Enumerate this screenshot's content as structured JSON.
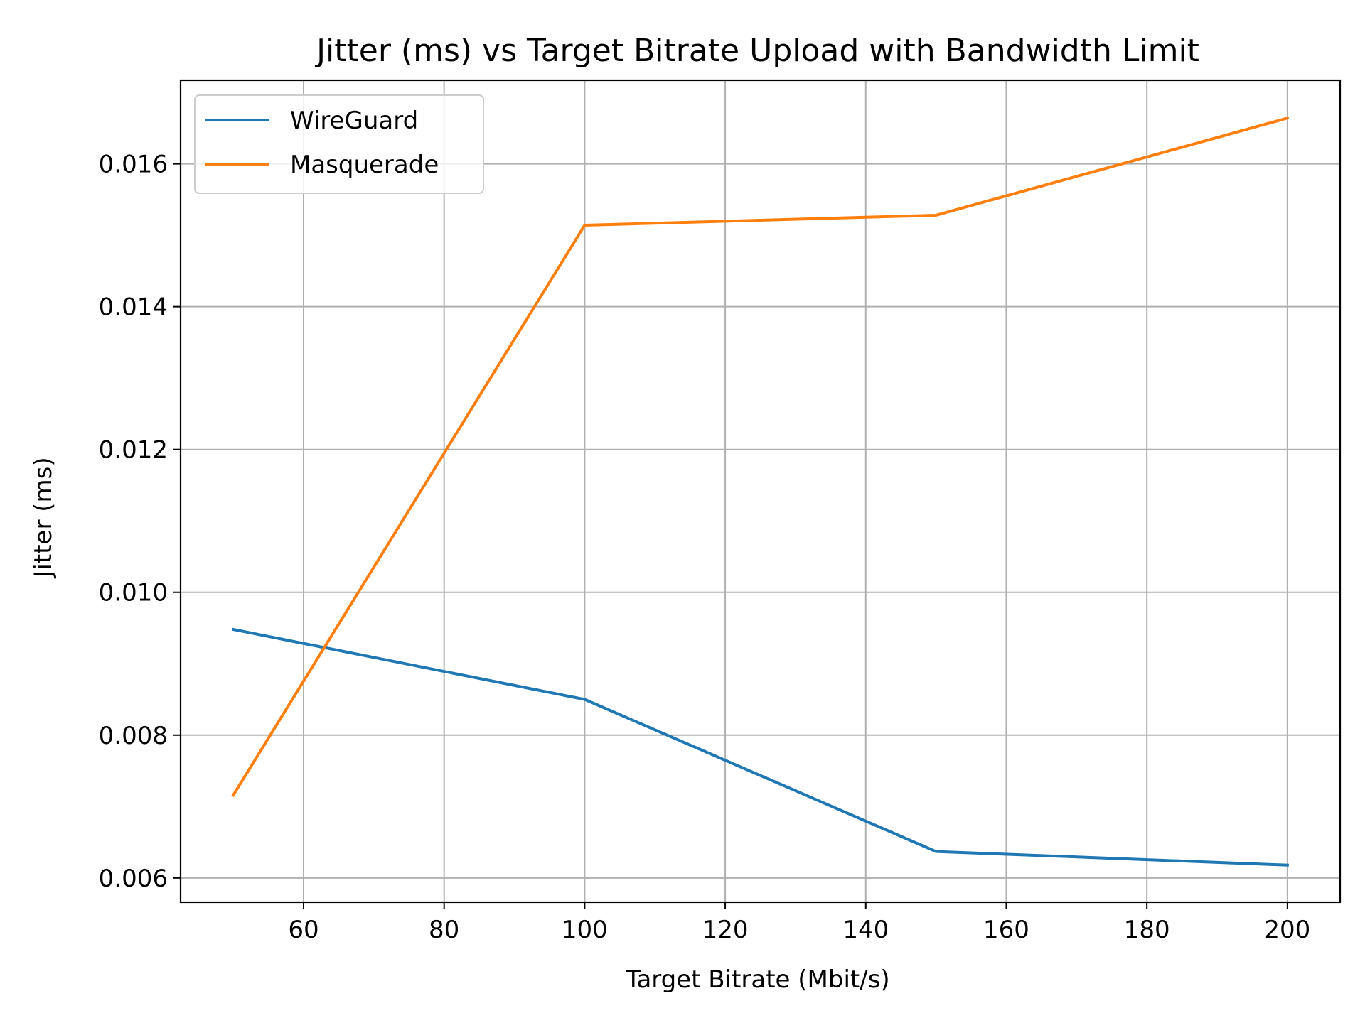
{
  "chart_data": {
    "type": "line",
    "title": "Jitter (ms) vs Target Bitrate Upload with Bandwidth Limit",
    "xlabel": "Target Bitrate (Mbit/s)",
    "ylabel": "Jitter (ms)",
    "x": [
      50,
      100,
      150,
      200
    ],
    "xlim": [
      42.5,
      207.5
    ],
    "ylim": [
      0.00566,
      0.01717
    ],
    "xticks": [
      60,
      80,
      100,
      120,
      140,
      160,
      180,
      200
    ],
    "xtick_labels": [
      "60",
      "80",
      "100",
      "120",
      "140",
      "160",
      "180",
      "200"
    ],
    "yticks": [
      0.006,
      0.008,
      0.01,
      0.012,
      0.014,
      0.016
    ],
    "ytick_labels": [
      "0.006",
      "0.008",
      "0.010",
      "0.012",
      "0.014",
      "0.016"
    ],
    "grid": true,
    "legend_position": "top-left",
    "series": [
      {
        "name": "WireGuard",
        "color": "#1f77b4",
        "values": [
          0.00948,
          0.0085,
          0.00637,
          0.00618
        ]
      },
      {
        "name": "Masquerade",
        "color": "#ff7f0e",
        "values": [
          0.00716,
          0.01514,
          0.01528,
          0.01664
        ]
      }
    ]
  }
}
